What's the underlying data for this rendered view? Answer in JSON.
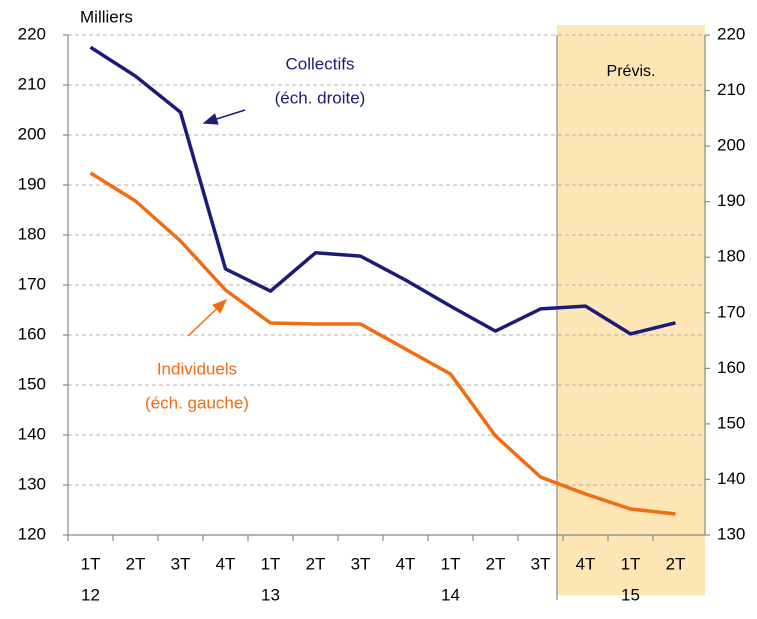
{
  "chart_data": {
    "type": "line",
    "unit_label": "Milliers",
    "categories": [
      "1T",
      "2T",
      "3T",
      "4T",
      "1T",
      "2T",
      "3T",
      "4T",
      "1T",
      "2T",
      "3T",
      "4T",
      "1T",
      "2T"
    ],
    "year_labels": [
      "12",
      null,
      null,
      null,
      "13",
      null,
      null,
      null,
      "14",
      null,
      null,
      null,
      "15",
      null
    ],
    "forecast": {
      "label": "Prévis.",
      "start": 11
    },
    "ylim": [
      120,
      220
    ],
    "yticks": [
      120,
      130,
      140,
      150,
      160,
      170,
      180,
      190,
      200,
      210,
      220
    ],
    "y2lim": [
      130,
      220
    ],
    "y2ticks": [
      130,
      140,
      150,
      160,
      170,
      180,
      190,
      200,
      210,
      220
    ],
    "grid": true,
    "series": [
      {
        "name": "Collectifs",
        "note": "(éch. droite)",
        "color": "#1c1c78",
        "axis": "y2",
        "values": [
          217.8,
          212.6,
          206.1,
          177.9,
          173.9,
          180.8,
          180.2,
          175.9,
          171.2,
          166.7,
          170.7,
          171.2,
          166.2,
          168.2
        ]
      },
      {
        "name": "Individuels",
        "note": "(éch. gauche)",
        "color": "#f26b10",
        "axis": "y",
        "values": [
          192.4,
          186.8,
          178.8,
          169,
          162.4,
          162.2,
          162.2,
          157.2,
          152.2,
          139.8,
          131.6,
          128.2,
          125.2,
          124.2
        ]
      }
    ]
  }
}
